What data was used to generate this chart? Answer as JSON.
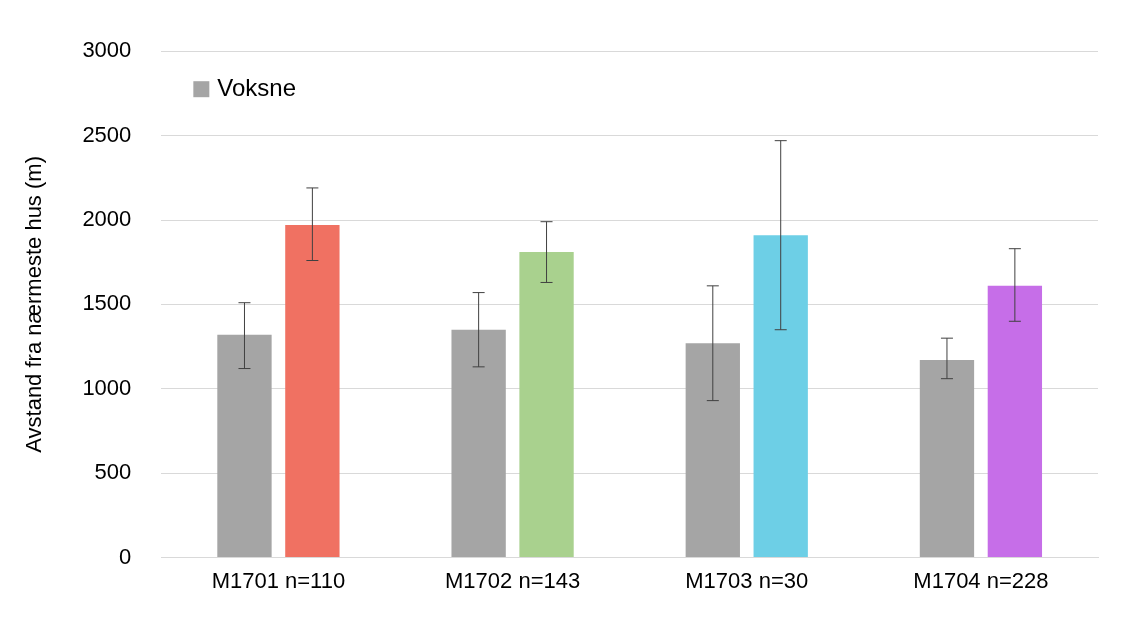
{
  "chart_data": {
    "type": "bar",
    "ylabel": "Avstand fra nærmeste hus (m)",
    "categories": [
      "M1701 n=110",
      "M1702 n=143",
      "M1703 n=30",
      "M1704 n=228"
    ],
    "series": [
      {
        "name": "Voksne",
        "color": "#a5a5a5",
        "values": [
          1320,
          1350,
          1270,
          1170
        ],
        "errors": [
          [
            1120,
            1510
          ],
          [
            1130,
            1570
          ],
          [
            930,
            1610
          ],
          [
            1060,
            1300
          ]
        ]
      },
      {
        "colors": [
          "#f07162",
          "#a9d18e",
          "#6dcfe6",
          "#c66ee8"
        ],
        "values": [
          1970,
          1810,
          1910,
          1610
        ],
        "errors": [
          [
            1760,
            2190
          ],
          [
            1630,
            1990
          ],
          [
            1350,
            2470
          ],
          [
            1400,
            1830
          ]
        ]
      }
    ],
    "ylim": [
      0,
      3000
    ],
    "yticks": [
      0,
      500,
      1000,
      1500,
      2000,
      2500,
      3000
    ],
    "grid": "y",
    "legend": "top left"
  }
}
